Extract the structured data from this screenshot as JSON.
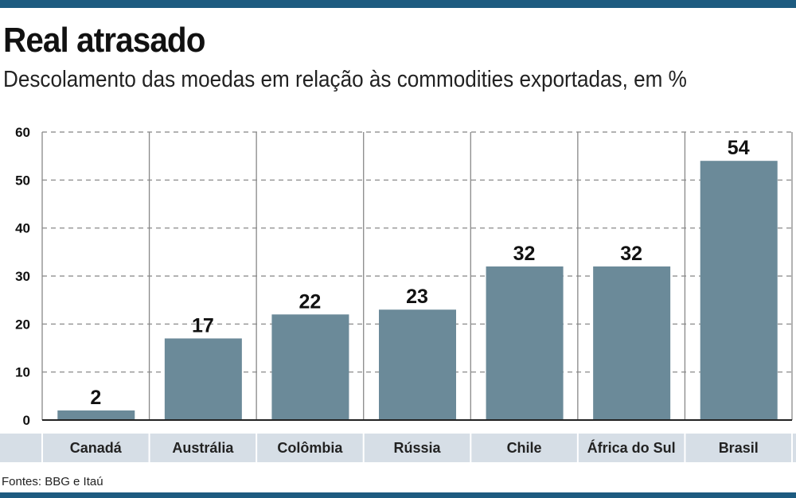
{
  "title": "Real atrasado",
  "subtitle": "Descolamento das moedas em relação às commodities exportadas, em %",
  "source": "Fontes: BBG e Itaú",
  "colors": {
    "bar": "#6b8a99",
    "band": "#d6dee6",
    "accent": "#1d5b80"
  },
  "chart_data": {
    "type": "bar",
    "categories": [
      "Canadá",
      "Austrália",
      "Colômbia",
      "Rússia",
      "Chile",
      "África do Sul",
      "Brasil"
    ],
    "values": [
      2,
      17,
      22,
      23,
      32,
      32,
      54
    ],
    "ylim": [
      0,
      60
    ],
    "yticks": [
      0,
      10,
      20,
      30,
      40,
      50,
      60
    ],
    "grid": true,
    "xlabel": "",
    "ylabel": ""
  }
}
